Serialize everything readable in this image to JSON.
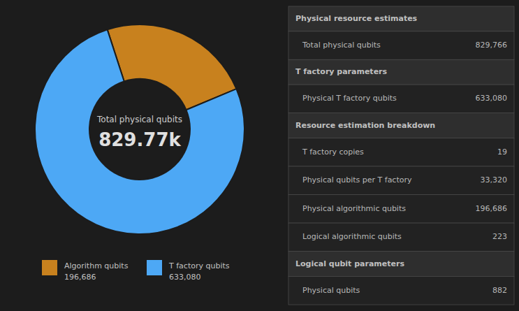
{
  "chart_data": [
    {
      "type": "donut",
      "categories": [
        "Algorithm qubits",
        "T factory qubits"
      ],
      "values": [
        196686,
        633080
      ],
      "value_labels": [
        "196,686",
        "633,080"
      ],
      "colors": [
        "#c8811e",
        "#4da8f5"
      ],
      "annotations": [
        "Total physical qubits",
        "829.77k"
      ]
    },
    {
      "type": "table",
      "sections": [
        {
          "title": "Physical resource estimates",
          "rows": [
            {
              "label": "Total physical qubits",
              "value": "829,766"
            }
          ]
        },
        {
          "title": "T factory parameters",
          "rows": [
            {
              "label": "Physical T factory qubits",
              "value": "633,080"
            }
          ]
        },
        {
          "title": "Resource estimation breakdown",
          "rows": [
            {
              "label": "T factory copies",
              "value": "19"
            },
            {
              "label": "Physical qubits per T factory",
              "value": "33,320"
            },
            {
              "label": "Physical algorithmic qubits",
              "value": "196,686"
            },
            {
              "label": "Logical algorithmic qubits",
              "value": "223"
            }
          ]
        },
        {
          "title": "Logical qubit parameters",
          "rows": [
            {
              "label": "Physical qubits",
              "value": "882"
            }
          ]
        }
      ]
    }
  ]
}
